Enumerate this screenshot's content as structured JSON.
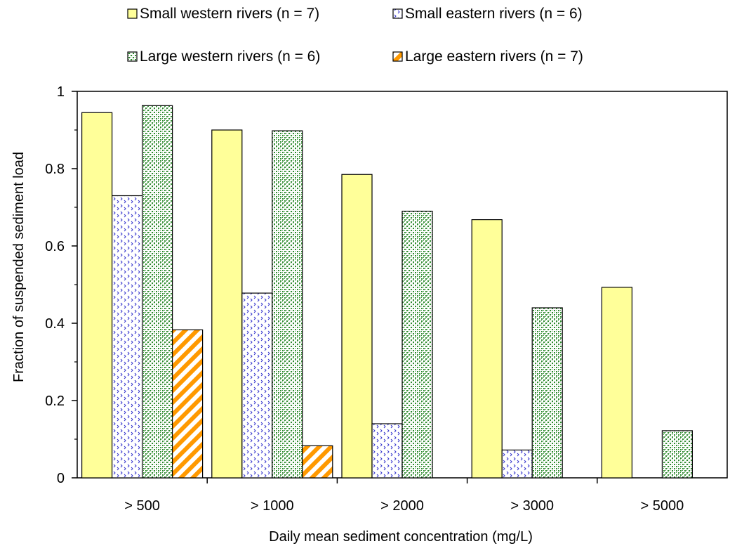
{
  "chart_data": {
    "type": "bar",
    "title": "",
    "xlabel": "Daily mean sediment concentration (mg/L)",
    "ylabel": "Fraction of suspended sediment load",
    "categories": [
      "> 500",
      "> 1000",
      "> 2000",
      "> 3000",
      "> 5000"
    ],
    "ylim": [
      0,
      1
    ],
    "yticks": [
      "0",
      "0.2",
      "0.4",
      "0.6",
      "0.8",
      "1"
    ],
    "ytick_values": [
      0,
      0.2,
      0.4,
      0.6,
      0.8,
      1
    ],
    "grid": false,
    "legend_position": "top",
    "series": [
      {
        "name": "Small western rivers (n = 7)",
        "values": [
          0.945,
          0.9,
          0.785,
          0.668,
          0.493
        ],
        "pattern": "plain",
        "color": "#ffff99"
      },
      {
        "name": "Small eastern rivers (n = 6)",
        "values": [
          0.73,
          0.478,
          0.14,
          0.072,
          null
        ],
        "pattern": "dots",
        "color": "#3333cc"
      },
      {
        "name": "Large western rivers (n = 6)",
        "values": [
          0.963,
          0.898,
          0.69,
          0.44,
          0.122
        ],
        "pattern": "dense-dots",
        "color": "#2e8b2e"
      },
      {
        "name": "Large eastern rivers (n = 7)",
        "values": [
          0.383,
          0.083,
          null,
          null,
          null
        ],
        "pattern": "stripes",
        "color": "#ff9900"
      }
    ]
  }
}
